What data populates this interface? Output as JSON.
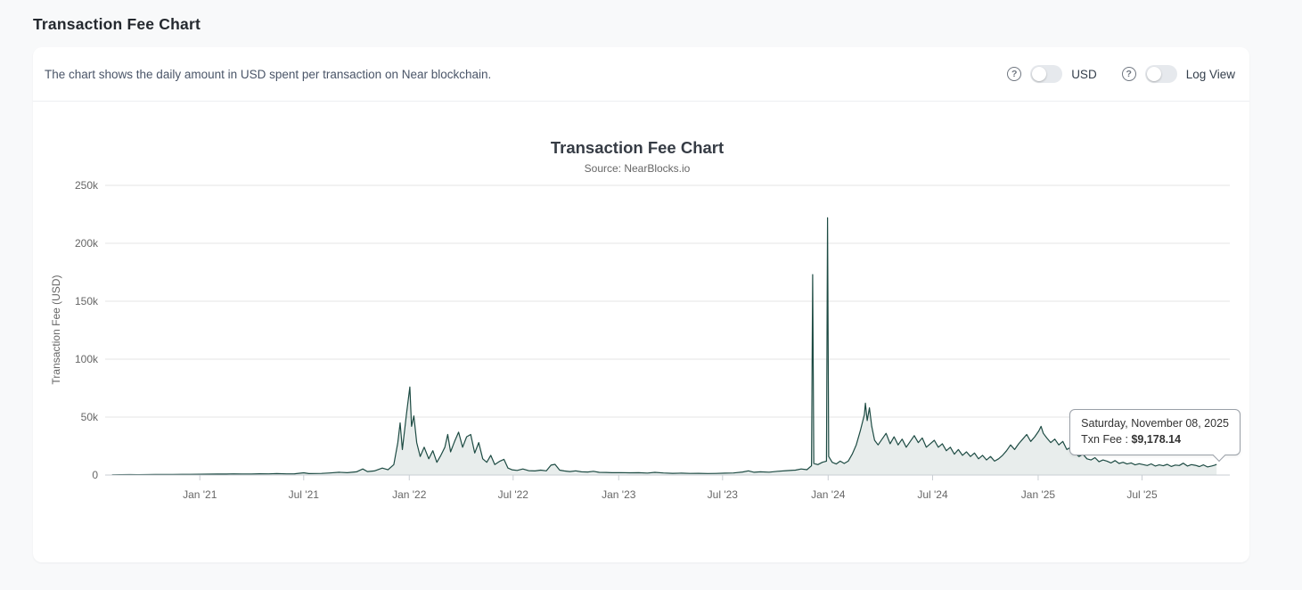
{
  "page": {
    "title": "Transaction Fee Chart"
  },
  "card": {
    "description": "The chart shows the daily amount in USD spent per transaction on Near blockchain.",
    "controls": {
      "help_icon_glyph": "?",
      "usd_toggle_label": "USD",
      "log_toggle_label": "Log View",
      "usd_toggle_state": "off",
      "log_toggle_state": "off"
    }
  },
  "tooltip": {
    "date": "Saturday, November 08, 2025",
    "label": "Txn Fee :",
    "value": "$9,178.14"
  },
  "chart_data": {
    "type": "area",
    "title": "Transaction Fee Chart",
    "subtitle": "Source: NearBlocks.io",
    "xlabel": "",
    "ylabel": "Transaction Fee (USD)",
    "ylim": [
      0,
      250000
    ],
    "x_range": [
      "2020-07-20",
      "2025-12-01"
    ],
    "grid": true,
    "legend": "none",
    "line_color": "#1d4b43",
    "area_fill": "rgba(29,75,67,0.10)",
    "axis_color": "#c9ced3",
    "grid_color": "#e6e6e6",
    "y_ticks": [
      {
        "value": 0,
        "label": "0"
      },
      {
        "value": 50000,
        "label": "50k"
      },
      {
        "value": 100000,
        "label": "100k"
      },
      {
        "value": 150000,
        "label": "150k"
      },
      {
        "value": 200000,
        "label": "200k"
      },
      {
        "value": 250000,
        "label": "250k"
      }
    ],
    "x_ticks": [
      {
        "date": "2021-01-01",
        "label": "Jan '21"
      },
      {
        "date": "2021-07-01",
        "label": "Jul '21"
      },
      {
        "date": "2022-01-01",
        "label": "Jan '22"
      },
      {
        "date": "2022-07-01",
        "label": "Jul '22"
      },
      {
        "date": "2023-01-01",
        "label": "Jan '23"
      },
      {
        "date": "2023-07-01",
        "label": "Jul '23"
      },
      {
        "date": "2024-01-01",
        "label": "Jan '24"
      },
      {
        "date": "2024-07-01",
        "label": "Jul '24"
      },
      {
        "date": "2025-01-01",
        "label": "Jan '25"
      },
      {
        "date": "2025-07-01",
        "label": "Jul '25"
      }
    ],
    "series": [
      {
        "name": "Txn Fee",
        "points": [
          [
            "2020-08-01",
            250
          ],
          [
            "2020-08-15",
            300
          ],
          [
            "2020-09-01",
            350
          ],
          [
            "2020-09-15",
            300
          ],
          [
            "2020-10-01",
            400
          ],
          [
            "2020-10-15",
            450
          ],
          [
            "2020-11-01",
            500
          ],
          [
            "2020-11-15",
            550
          ],
          [
            "2020-12-01",
            600
          ],
          [
            "2020-12-15",
            650
          ],
          [
            "2021-01-01",
            700
          ],
          [
            "2021-01-15",
            800
          ],
          [
            "2021-02-01",
            900
          ],
          [
            "2021-02-15",
            850
          ],
          [
            "2021-03-01",
            1000
          ],
          [
            "2021-03-15",
            900
          ],
          [
            "2021-04-01",
            950
          ],
          [
            "2021-04-15",
            1100
          ],
          [
            "2021-05-01",
            1000
          ],
          [
            "2021-05-15",
            1200
          ],
          [
            "2021-06-01",
            1000
          ],
          [
            "2021-06-15",
            1100
          ],
          [
            "2021-07-01",
            1900
          ],
          [
            "2021-07-10",
            1200
          ],
          [
            "2021-08-01",
            1400
          ],
          [
            "2021-08-15",
            1800
          ],
          [
            "2021-09-01",
            2400
          ],
          [
            "2021-09-15",
            2000
          ],
          [
            "2021-10-01",
            2800
          ],
          [
            "2021-10-12",
            5200
          ],
          [
            "2021-10-20",
            3000
          ],
          [
            "2021-11-01",
            3500
          ],
          [
            "2021-11-15",
            6000
          ],
          [
            "2021-11-25",
            4500
          ],
          [
            "2021-12-05",
            9000
          ],
          [
            "2021-12-12",
            28000
          ],
          [
            "2021-12-16",
            45000
          ],
          [
            "2021-12-20",
            22000
          ],
          [
            "2021-12-27",
            52000
          ],
          [
            "2022-01-02",
            76000
          ],
          [
            "2022-01-05",
            42000
          ],
          [
            "2022-01-09",
            51000
          ],
          [
            "2022-01-14",
            28000
          ],
          [
            "2022-01-20",
            16000
          ],
          [
            "2022-01-27",
            24000
          ],
          [
            "2022-02-04",
            14000
          ],
          [
            "2022-02-11",
            21000
          ],
          [
            "2022-02-18",
            11000
          ],
          [
            "2022-02-25",
            17000
          ],
          [
            "2022-03-04",
            24000
          ],
          [
            "2022-03-09",
            35000
          ],
          [
            "2022-03-14",
            20000
          ],
          [
            "2022-03-21",
            29000
          ],
          [
            "2022-03-28",
            37000
          ],
          [
            "2022-04-04",
            24000
          ],
          [
            "2022-04-11",
            33000
          ],
          [
            "2022-04-18",
            35000
          ],
          [
            "2022-04-25",
            19000
          ],
          [
            "2022-05-02",
            28000
          ],
          [
            "2022-05-09",
            14000
          ],
          [
            "2022-05-16",
            11000
          ],
          [
            "2022-05-23",
            17000
          ],
          [
            "2022-05-30",
            9000
          ],
          [
            "2022-06-08",
            12000
          ],
          [
            "2022-06-15",
            13500
          ],
          [
            "2022-06-22",
            6000
          ],
          [
            "2022-06-29",
            4500
          ],
          [
            "2022-07-08",
            4000
          ],
          [
            "2022-07-18",
            5200
          ],
          [
            "2022-07-28",
            3800
          ],
          [
            "2022-08-08",
            3500
          ],
          [
            "2022-08-18",
            4200
          ],
          [
            "2022-08-28",
            3600
          ],
          [
            "2022-09-05",
            8500
          ],
          [
            "2022-09-12",
            9200
          ],
          [
            "2022-09-20",
            4200
          ],
          [
            "2022-09-28",
            3500
          ],
          [
            "2022-10-08",
            3000
          ],
          [
            "2022-10-18",
            3600
          ],
          [
            "2022-10-28",
            2800
          ],
          [
            "2022-11-08",
            2600
          ],
          [
            "2022-11-18",
            3200
          ],
          [
            "2022-11-28",
            2300
          ],
          [
            "2022-12-10",
            2200
          ],
          [
            "2022-12-20",
            2000
          ],
          [
            "2023-01-05",
            2100
          ],
          [
            "2023-01-20",
            1900
          ],
          [
            "2023-02-05",
            2000
          ],
          [
            "2023-02-20",
            1700
          ],
          [
            "2023-03-05",
            2300
          ],
          [
            "2023-03-20",
            1800
          ],
          [
            "2023-04-05",
            1500
          ],
          [
            "2023-04-20",
            1600
          ],
          [
            "2023-05-05",
            1400
          ],
          [
            "2023-05-20",
            1500
          ],
          [
            "2023-06-05",
            1300
          ],
          [
            "2023-06-20",
            1400
          ],
          [
            "2023-07-05",
            1600
          ],
          [
            "2023-07-20",
            1800
          ],
          [
            "2023-08-05",
            2600
          ],
          [
            "2023-08-15",
            3600
          ],
          [
            "2023-08-25",
            2400
          ],
          [
            "2023-09-05",
            2800
          ],
          [
            "2023-09-20",
            2500
          ],
          [
            "2023-10-05",
            3200
          ],
          [
            "2023-10-20",
            3800
          ],
          [
            "2023-11-05",
            4200
          ],
          [
            "2023-11-15",
            5200
          ],
          [
            "2023-11-25",
            4600
          ],
          [
            "2023-12-03",
            8000
          ],
          [
            "2023-12-05",
            173000
          ],
          [
            "2023-12-07",
            10000
          ],
          [
            "2023-12-14",
            9000
          ],
          [
            "2023-12-22",
            11000
          ],
          [
            "2023-12-29",
            12000
          ],
          [
            "2023-12-31",
            222000
          ],
          [
            "2024-01-02",
            16000
          ],
          [
            "2024-01-08",
            11000
          ],
          [
            "2024-01-15",
            9500
          ],
          [
            "2024-01-22",
            12000
          ],
          [
            "2024-01-29",
            10000
          ],
          [
            "2024-02-05",
            12000
          ],
          [
            "2024-02-12",
            18000
          ],
          [
            "2024-02-19",
            26000
          ],
          [
            "2024-02-26",
            38000
          ],
          [
            "2024-03-04",
            52000
          ],
          [
            "2024-03-06",
            62000
          ],
          [
            "2024-03-09",
            47000
          ],
          [
            "2024-03-13",
            58000
          ],
          [
            "2024-03-17",
            42000
          ],
          [
            "2024-03-22",
            30000
          ],
          [
            "2024-03-28",
            26000
          ],
          [
            "2024-04-04",
            31000
          ],
          [
            "2024-04-11",
            36000
          ],
          [
            "2024-04-18",
            27000
          ],
          [
            "2024-04-25",
            33000
          ],
          [
            "2024-05-02",
            26000
          ],
          [
            "2024-05-09",
            31000
          ],
          [
            "2024-05-16",
            24000
          ],
          [
            "2024-05-23",
            29000
          ],
          [
            "2024-05-30",
            34000
          ],
          [
            "2024-06-06",
            28000
          ],
          [
            "2024-06-13",
            32000
          ],
          [
            "2024-06-20",
            24000
          ],
          [
            "2024-06-27",
            27000
          ],
          [
            "2024-07-04",
            30000
          ],
          [
            "2024-07-11",
            24000
          ],
          [
            "2024-07-18",
            27000
          ],
          [
            "2024-07-25",
            21000
          ],
          [
            "2024-08-01",
            24000
          ],
          [
            "2024-08-08",
            18000
          ],
          [
            "2024-08-15",
            22000
          ],
          [
            "2024-08-22",
            17000
          ],
          [
            "2024-08-29",
            20000
          ],
          [
            "2024-09-05",
            16000
          ],
          [
            "2024-09-12",
            19000
          ],
          [
            "2024-09-19",
            14000
          ],
          [
            "2024-09-26",
            17000
          ],
          [
            "2024-10-03",
            13000
          ],
          [
            "2024-10-10",
            16000
          ],
          [
            "2024-10-17",
            12000
          ],
          [
            "2024-10-24",
            14000
          ],
          [
            "2024-10-31",
            17000
          ],
          [
            "2024-11-07",
            21000
          ],
          [
            "2024-11-14",
            26000
          ],
          [
            "2024-11-21",
            22000
          ],
          [
            "2024-11-28",
            27000
          ],
          [
            "2024-12-05",
            31000
          ],
          [
            "2024-12-12",
            35000
          ],
          [
            "2024-12-19",
            29000
          ],
          [
            "2024-12-26",
            33000
          ],
          [
            "2025-01-02",
            38000
          ],
          [
            "2025-01-06",
            42000
          ],
          [
            "2025-01-10",
            36000
          ],
          [
            "2025-01-16",
            32000
          ],
          [
            "2025-01-23",
            28000
          ],
          [
            "2025-01-30",
            31000
          ],
          [
            "2025-02-06",
            26000
          ],
          [
            "2025-02-13",
            29000
          ],
          [
            "2025-02-20",
            22000
          ],
          [
            "2025-02-27",
            24000
          ],
          [
            "2025-03-06",
            19000
          ],
          [
            "2025-03-13",
            16000
          ],
          [
            "2025-03-20",
            18000
          ],
          [
            "2025-03-27",
            14000
          ],
          [
            "2025-04-03",
            13000
          ],
          [
            "2025-04-10",
            15000
          ],
          [
            "2025-04-17",
            11500
          ],
          [
            "2025-04-24",
            13000
          ],
          [
            "2025-05-01",
            12000
          ],
          [
            "2025-05-08",
            10500
          ],
          [
            "2025-05-15",
            12500
          ],
          [
            "2025-05-22",
            10000
          ],
          [
            "2025-05-29",
            11000
          ],
          [
            "2025-06-05",
            9500
          ],
          [
            "2025-06-12",
            10500
          ],
          [
            "2025-06-19",
            8800
          ],
          [
            "2025-06-26",
            9800
          ],
          [
            "2025-07-03",
            9000
          ],
          [
            "2025-07-10",
            8200
          ],
          [
            "2025-07-17",
            9600
          ],
          [
            "2025-07-24",
            7800
          ],
          [
            "2025-07-31",
            8800
          ],
          [
            "2025-08-07",
            8000
          ],
          [
            "2025-08-14",
            9200
          ],
          [
            "2025-08-21",
            7400
          ],
          [
            "2025-08-28",
            8600
          ],
          [
            "2025-09-04",
            8200
          ],
          [
            "2025-09-11",
            10200
          ],
          [
            "2025-09-18",
            7800
          ],
          [
            "2025-09-25",
            9000
          ],
          [
            "2025-10-02",
            8400
          ],
          [
            "2025-10-09",
            7300
          ],
          [
            "2025-10-16",
            8800
          ],
          [
            "2025-10-23",
            7000
          ],
          [
            "2025-10-30",
            7800
          ],
          [
            "2025-11-04",
            8400
          ],
          [
            "2025-11-08",
            9178.14
          ]
        ]
      }
    ]
  }
}
